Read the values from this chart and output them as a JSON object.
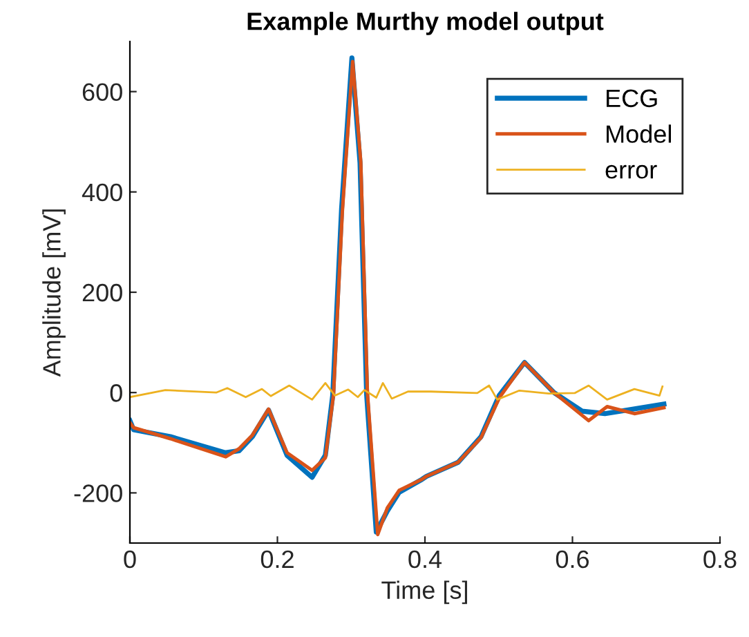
{
  "chart_data": {
    "type": "line",
    "title": "Example Murthy model output",
    "xlabel": "Time [s]",
    "ylabel": "Amplitude [mV]",
    "xlim": [
      0,
      0.8
    ],
    "ylim": [
      -300,
      700
    ],
    "xticks": [
      0,
      0.2,
      0.4,
      0.6,
      0.8
    ],
    "yticks": [
      -200,
      0,
      200,
      400,
      600
    ],
    "grid": false,
    "legend": "top right",
    "line_style": "solid",
    "marker": "none",
    "series": [
      {
        "name": "ECG",
        "color": "#0072bd",
        "x": [
          0,
          0.005,
          0.055,
          0.129,
          0.148,
          0.166,
          0.188,
          0.213,
          0.247,
          0.265,
          0.275,
          0.287,
          0.301,
          0.312,
          0.321,
          0.334,
          0.349,
          0.365,
          0.396,
          0.402,
          0.445,
          0.476,
          0.501,
          0.535,
          0.575,
          0.613,
          0.644,
          0.724
        ],
        "values": [
          -56,
          -74,
          -88,
          -120,
          -116,
          -88,
          -35,
          -125,
          -169,
          -125,
          -5,
          366,
          667,
          458,
          -5,
          -278,
          -236,
          -199,
          -173,
          -167,
          -139,
          -88,
          -5,
          60,
          0,
          -37,
          -42,
          -23
        ]
      },
      {
        "name": "Model",
        "color": "#d95319",
        "x": [
          0,
          0.005,
          0.055,
          0.13,
          0.148,
          0.166,
          0.188,
          0.213,
          0.247,
          0.265,
          0.276,
          0.288,
          0.302,
          0.313,
          0.322,
          0.336,
          0.349,
          0.365,
          0.396,
          0.402,
          0.445,
          0.476,
          0.501,
          0.535,
          0.575,
          0.622,
          0.647,
          0.684,
          0.724
        ],
        "values": [
          -60,
          -70,
          -92,
          -128,
          -112,
          -85,
          -33,
          -120,
          -155,
          -130,
          -5,
          360,
          660,
          460,
          0,
          -283,
          -230,
          -195,
          -173,
          -167,
          -139,
          -90,
          -10,
          60,
          0,
          -56,
          -28,
          -42,
          -30
        ]
      },
      {
        "name": "error",
        "color": "#edb120",
        "x": [
          0,
          0.048,
          0.117,
          0.132,
          0.157,
          0.179,
          0.191,
          0.216,
          0.247,
          0.265,
          0.278,
          0.296,
          0.309,
          0.318,
          0.334,
          0.343,
          0.355,
          0.377,
          0.408,
          0.471,
          0.487,
          0.498,
          0.528,
          0.568,
          0.603,
          0.622,
          0.647,
          0.684,
          0.718,
          0.722
        ],
        "values": [
          -9,
          5,
          0,
          9,
          -9,
          7,
          -7,
          14,
          -14,
          19,
          -6,
          6,
          -9,
          5,
          -10,
          19,
          -12,
          2,
          2,
          -1,
          14,
          -14,
          4,
          -2,
          -1,
          14,
          -14,
          7,
          -6,
          12
        ]
      }
    ]
  }
}
